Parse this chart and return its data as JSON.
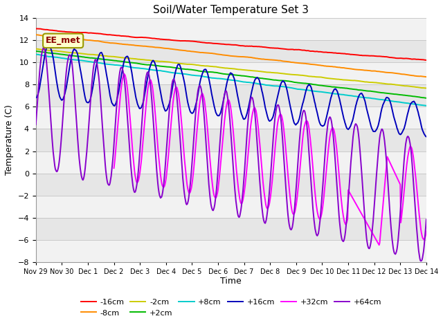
{
  "title": "Soil/Water Temperature Set 3",
  "xlabel": "Time",
  "ylabel": "Temperature (C)",
  "ylim": [
    -8,
    14
  ],
  "yticks": [
    -8,
    -6,
    -4,
    -2,
    0,
    2,
    4,
    6,
    8,
    10,
    12,
    14
  ],
  "x_tick_labels": [
    "Nov 29",
    "Nov 30",
    "Dec 1",
    "Dec 2",
    "Dec 3",
    "Dec 4",
    "Dec 5",
    "Dec 6",
    "Dec 7",
    "Dec 8",
    "Dec 9",
    "Dec 10",
    "Dec 11",
    "Dec 12",
    "Dec 13",
    "Dec 14"
  ],
  "series": [
    {
      "label": "-16cm",
      "color": "#FF0000"
    },
    {
      "label": "-8cm",
      "color": "#FF8C00"
    },
    {
      "label": "-2cm",
      "color": "#CCCC00"
    },
    {
      "label": "+2cm",
      "color": "#00BB00"
    },
    {
      "label": "+8cm",
      "color": "#00CCCC"
    },
    {
      "label": "+16cm",
      "color": "#0000BB"
    },
    {
      "label": "+32cm",
      "color": "#FF00FF"
    },
    {
      "label": "+64cm",
      "color": "#8800CC"
    }
  ],
  "watermark": "EE_met",
  "bg_light": "#F2F2F2",
  "bg_dark": "#E6E6E6"
}
